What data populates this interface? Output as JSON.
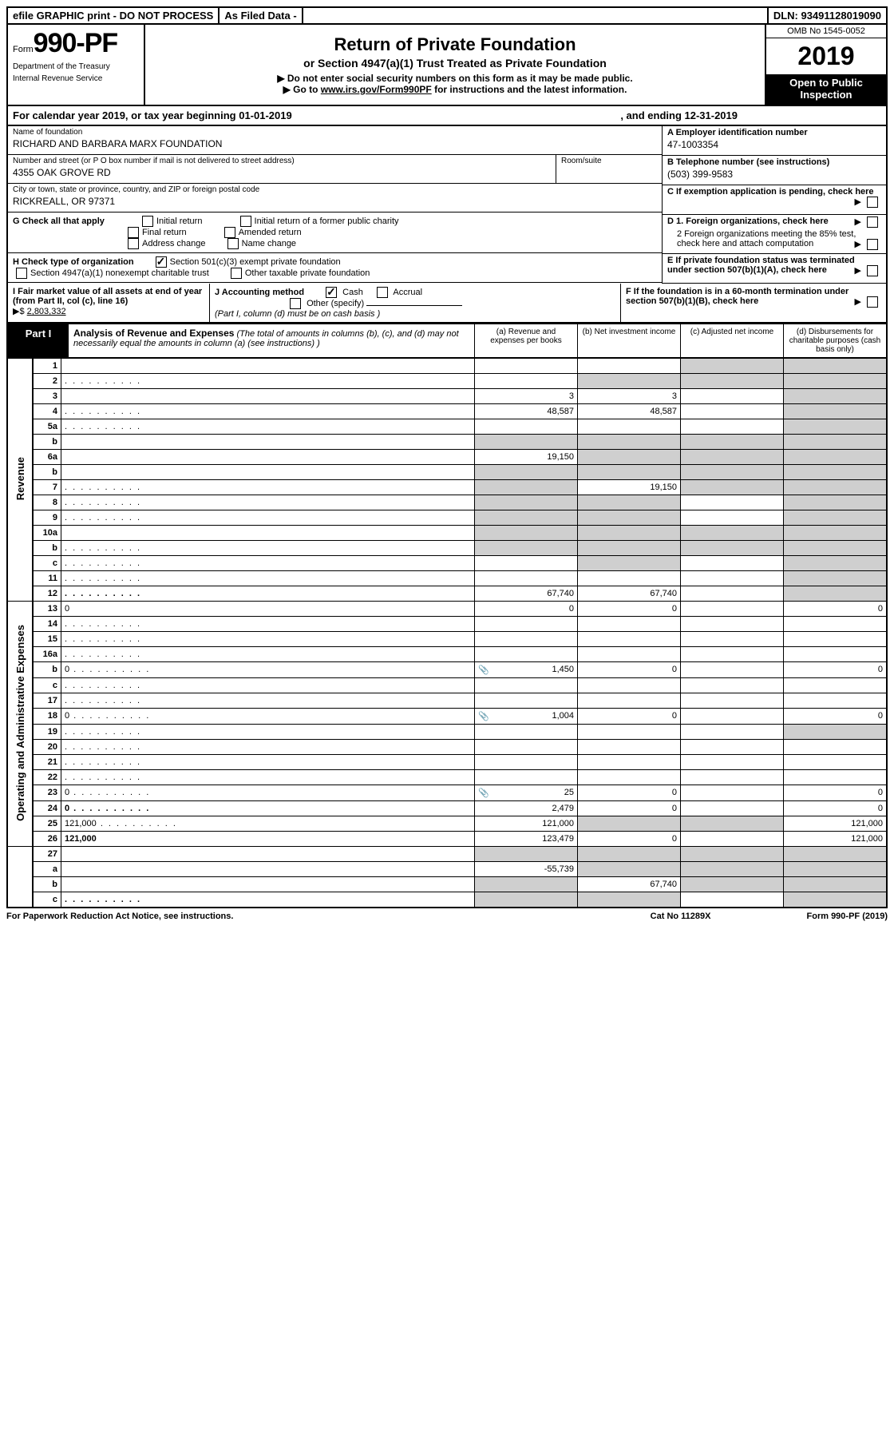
{
  "topbar": {
    "efile": "efile GRAPHIC print - DO NOT PROCESS",
    "asfiled": "As Filed Data -",
    "dln": "DLN: 93491128019090"
  },
  "header": {
    "form_prefix": "Form",
    "form_number": "990-PF",
    "dept1": "Department of the Treasury",
    "dept2": "Internal Revenue Service",
    "title": "Return of Private Foundation",
    "subtitle": "or Section 4947(a)(1) Trust Treated as Private Foundation",
    "instr1": "▶ Do not enter social security numbers on this form as it may be made public.",
    "instr2_pre": "▶ Go to ",
    "instr2_link": "www.irs.gov/Form990PF",
    "instr2_post": " for instructions and the latest information.",
    "omb": "OMB No 1545-0052",
    "year": "2019",
    "inspect": "Open to Public Inspection"
  },
  "calyear": {
    "text_a": "For calendar year 2019, or tax year beginning 01-01-2019",
    "text_b": ", and ending 12-31-2019"
  },
  "info": {
    "name_lbl": "Name of foundation",
    "name_val": "RICHARD AND BARBARA MARX FOUNDATION",
    "street_lbl": "Number and street (or P O  box number if mail is not delivered to street address)",
    "street_val": "4355 OAK GROVE RD",
    "room_lbl": "Room/suite",
    "city_lbl": "City or town, state or province, country, and ZIP or foreign postal code",
    "city_val": "RICKREALL, OR  97371",
    "a_lbl": "A Employer identification number",
    "a_val": "47-1003354",
    "b_lbl": "B Telephone number (see instructions)",
    "b_val": "(503) 399-9583",
    "c_lbl": "C If exemption application is pending, check here",
    "d1_lbl": "D 1. Foreign organizations, check here",
    "d2_lbl": "2 Foreign organizations meeting the 85% test, check here and attach computation",
    "e_lbl": "E  If private foundation status was terminated under section 507(b)(1)(A), check here",
    "f_lbl": "F  If the foundation is in a 60-month termination under section 507(b)(1)(B), check here"
  },
  "g": {
    "lbl": "G Check all that apply",
    "opts": [
      "Initial return",
      "Initial return of a former public charity",
      "Final return",
      "Amended return",
      "Address change",
      "Name change"
    ]
  },
  "h": {
    "lbl": "H Check type of organization",
    "opt1": "Section 501(c)(3) exempt private foundation",
    "opt2": "Section 4947(a)(1) nonexempt charitable trust",
    "opt3": "Other taxable private foundation"
  },
  "i": {
    "lbl": "I Fair market value of all assets at end of year (from Part II, col  (c), line 16)",
    "marker": "▶$",
    "val": "2,803,332"
  },
  "j": {
    "lbl": "J Accounting method",
    "cash": "Cash",
    "accrual": "Accrual",
    "other": "Other (specify)",
    "note": "(Part I, column (d) must be on cash basis )"
  },
  "part1": {
    "label": "Part I",
    "title": "Analysis of Revenue and Expenses",
    "note": "(The total of amounts in columns (b), (c), and (d) may not necessarily equal the amounts in column (a) (see instructions) )",
    "col_a": "(a) Revenue and expenses per books",
    "col_b": "(b) Net investment income",
    "col_c": "(c) Adjusted net income",
    "col_d": "(d) Disbursements for charitable purposes (cash basis only)"
  },
  "sidelabels": {
    "revenue": "Revenue",
    "expenses": "Operating and Administrative Expenses"
  },
  "rows": [
    {
      "n": "1",
      "d": "",
      "a": "",
      "b": "",
      "c": "",
      "rev": true,
      "cgrey": true,
      "dgrey": true
    },
    {
      "n": "2",
      "d": "",
      "a": "",
      "b": "",
      "c": "",
      "rev": true,
      "bgrey": true,
      "cgrey": true,
      "dgrey": true,
      "dots": true
    },
    {
      "n": "3",
      "d": "",
      "a": "3",
      "b": "3",
      "c": "",
      "rev": true,
      "dgrey": true
    },
    {
      "n": "4",
      "d": "",
      "a": "48,587",
      "b": "48,587",
      "c": "",
      "rev": true,
      "dgrey": true,
      "dots": true
    },
    {
      "n": "5a",
      "d": "",
      "a": "",
      "b": "",
      "c": "",
      "rev": true,
      "dgrey": true,
      "dots": true
    },
    {
      "n": "b",
      "d": "",
      "a": "",
      "b": "",
      "c": "",
      "rev": true,
      "agrey": true,
      "bgrey": true,
      "cgrey": true,
      "dgrey": true
    },
    {
      "n": "6a",
      "d": "",
      "a": "19,150",
      "b": "",
      "c": "",
      "rev": true,
      "bgrey": true,
      "cgrey": true,
      "dgrey": true
    },
    {
      "n": "b",
      "d": "",
      "a": "",
      "b": "",
      "c": "",
      "rev": true,
      "agrey": true,
      "bgrey": true,
      "cgrey": true,
      "dgrey": true
    },
    {
      "n": "7",
      "d": "",
      "a": "",
      "b": "19,150",
      "c": "",
      "rev": true,
      "agrey": true,
      "cgrey": true,
      "dgrey": true,
      "dots": true
    },
    {
      "n": "8",
      "d": "",
      "a": "",
      "b": "",
      "c": "",
      "rev": true,
      "agrey": true,
      "bgrey": true,
      "dgrey": true,
      "dots": true
    },
    {
      "n": "9",
      "d": "",
      "a": "",
      "b": "",
      "c": "",
      "rev": true,
      "agrey": true,
      "bgrey": true,
      "dgrey": true,
      "dots": true
    },
    {
      "n": "10a",
      "d": "",
      "a": "",
      "b": "",
      "c": "",
      "rev": true,
      "agrey": true,
      "bgrey": true,
      "cgrey": true,
      "dgrey": true
    },
    {
      "n": "b",
      "d": "",
      "a": "",
      "b": "",
      "c": "",
      "rev": true,
      "agrey": true,
      "bgrey": true,
      "cgrey": true,
      "dgrey": true,
      "dots": true
    },
    {
      "n": "c",
      "d": "",
      "a": "",
      "b": "",
      "c": "",
      "rev": true,
      "bgrey": true,
      "dgrey": true,
      "dots": true
    },
    {
      "n": "11",
      "d": "",
      "a": "",
      "b": "",
      "c": "",
      "rev": true,
      "dgrey": true,
      "dots": true
    },
    {
      "n": "12",
      "d": "",
      "a": "67,740",
      "b": "67,740",
      "c": "",
      "rev": true,
      "bold": true,
      "dgrey": true,
      "dots": true
    },
    {
      "n": "13",
      "d": "0",
      "a": "0",
      "b": "0",
      "c": ""
    },
    {
      "n": "14",
      "d": "",
      "a": "",
      "b": "",
      "c": "",
      "dots": true
    },
    {
      "n": "15",
      "d": "",
      "a": "",
      "b": "",
      "c": "",
      "dots": true
    },
    {
      "n": "16a",
      "d": "",
      "a": "",
      "b": "",
      "c": "",
      "dots": true
    },
    {
      "n": "b",
      "d": "0",
      "a": "1,450",
      "b": "0",
      "c": "",
      "dots": true,
      "icon": true
    },
    {
      "n": "c",
      "d": "",
      "a": "",
      "b": "",
      "c": "",
      "dots": true
    },
    {
      "n": "17",
      "d": "",
      "a": "",
      "b": "",
      "c": "",
      "dots": true
    },
    {
      "n": "18",
      "d": "0",
      "a": "1,004",
      "b": "0",
      "c": "",
      "dots": true,
      "icon": true
    },
    {
      "n": "19",
      "d": "",
      "a": "",
      "b": "",
      "c": "",
      "dgrey": true,
      "dots": true
    },
    {
      "n": "20",
      "d": "",
      "a": "",
      "b": "",
      "c": "",
      "dots": true
    },
    {
      "n": "21",
      "d": "",
      "a": "",
      "b": "",
      "c": "",
      "dots": true
    },
    {
      "n": "22",
      "d": "",
      "a": "",
      "b": "",
      "c": "",
      "dots": true
    },
    {
      "n": "23",
      "d": "0",
      "a": "25",
      "b": "0",
      "c": "",
      "dots": true,
      "icon": true
    },
    {
      "n": "24",
      "d": "0",
      "a": "2,479",
      "b": "0",
      "c": "",
      "bold": true,
      "dots": true
    },
    {
      "n": "25",
      "d": "121,000",
      "a": "121,000",
      "b": "",
      "c": "",
      "bgrey": true,
      "cgrey": true,
      "dots": true
    },
    {
      "n": "26",
      "d": "121,000",
      "a": "123,479",
      "b": "0",
      "c": "",
      "bold": true
    },
    {
      "n": "27",
      "d": "",
      "a": "",
      "b": "",
      "c": "",
      "net": true,
      "agrey": true,
      "bgrey": true,
      "cgrey": true,
      "dgrey": true
    },
    {
      "n": "a",
      "d": "",
      "a": "-55,739",
      "b": "",
      "c": "",
      "net": true,
      "bold": true,
      "bgrey": true,
      "cgrey": true,
      "dgrey": true
    },
    {
      "n": "b",
      "d": "",
      "a": "",
      "b": "67,740",
      "c": "",
      "net": true,
      "bold": true,
      "agrey": true,
      "cgrey": true,
      "dgrey": true
    },
    {
      "n": "c",
      "d": "",
      "a": "",
      "b": "",
      "c": "",
      "net": true,
      "bold": true,
      "agrey": true,
      "bgrey": true,
      "dgrey": true,
      "dots": true
    }
  ],
  "footer": {
    "left": "For Paperwork Reduction Act Notice, see instructions.",
    "mid": "Cat  No  11289X",
    "right_pre": "Form ",
    "right_b": "990-PF",
    "right_post": " (2019)"
  }
}
